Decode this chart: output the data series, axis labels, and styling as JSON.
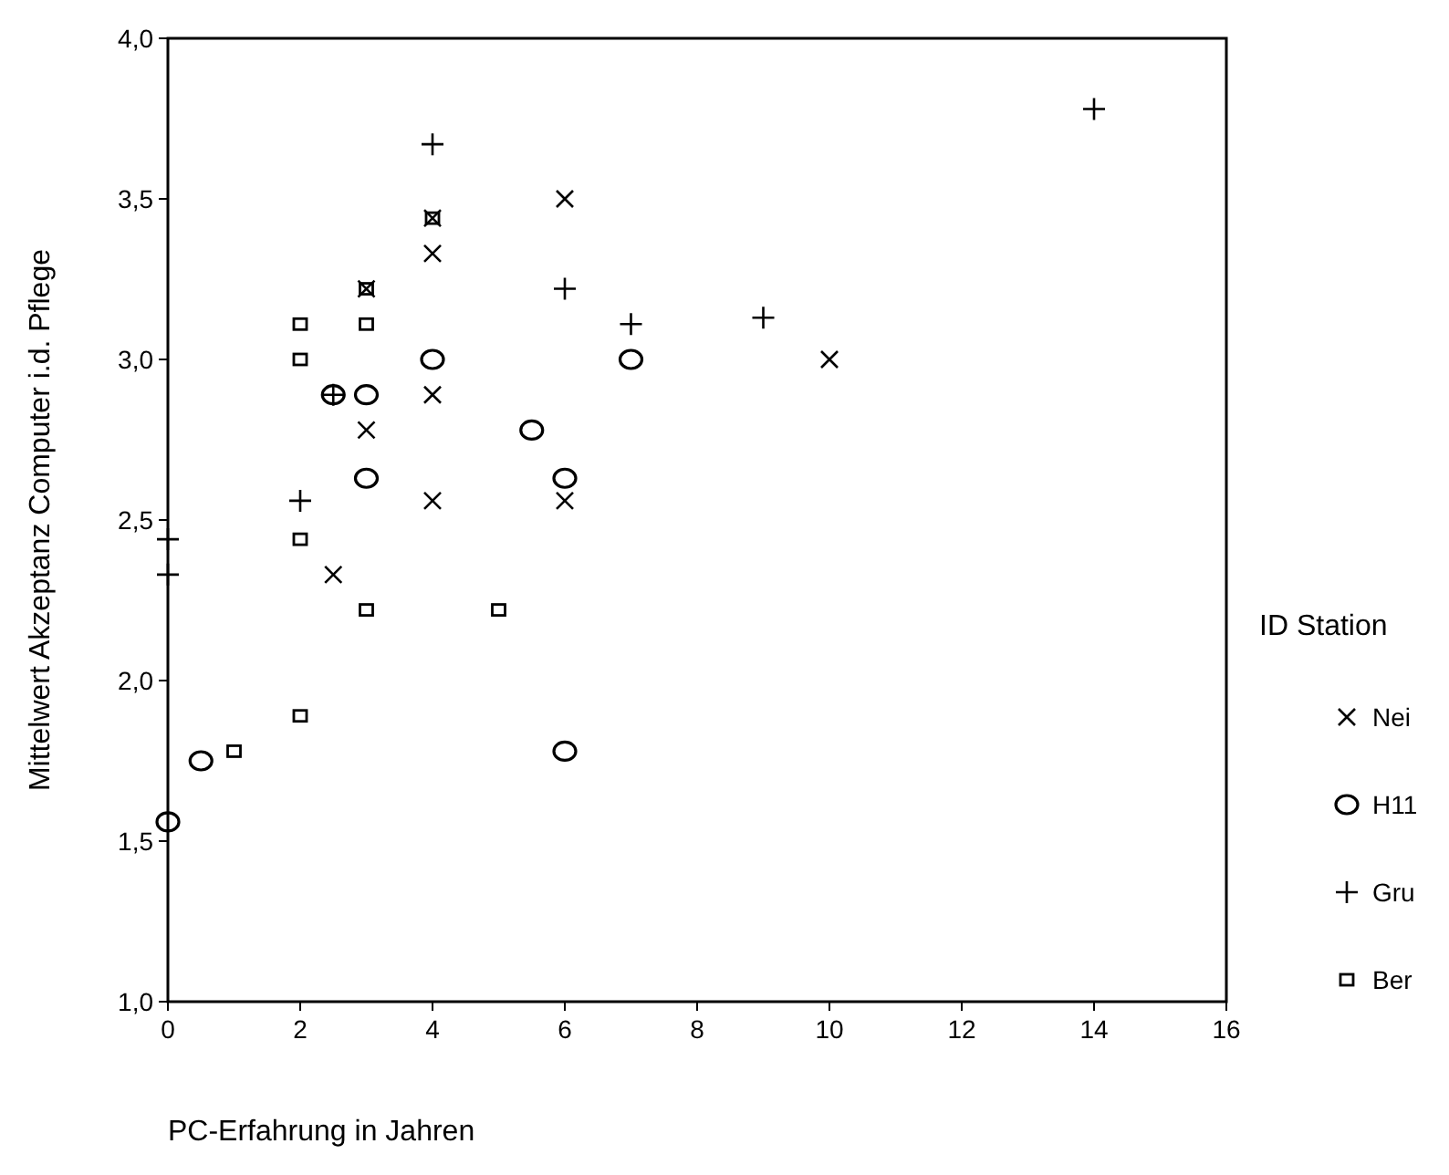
{
  "chart_data": {
    "type": "scatter",
    "xlabel": "PC-Erfahrung in Jahren",
    "ylabel": "Mittelwert Akzeptanz Computer i.d. Pflege",
    "legend_title": "ID Station",
    "legend": "right",
    "grid": false,
    "xlim": [
      0,
      16
    ],
    "xticks": [
      0,
      2,
      4,
      6,
      8,
      10,
      12,
      14,
      16
    ],
    "ylim": [
      1,
      4
    ],
    "yticks": [
      {
        "value": 1,
        "label": "1,0"
      },
      {
        "value": 1.5,
        "label": "1,5"
      },
      {
        "value": 2,
        "label": "2,0"
      },
      {
        "value": 2.5,
        "label": "2,5"
      },
      {
        "value": 3,
        "label": "3,0"
      },
      {
        "value": 3.5,
        "label": "3,5"
      },
      {
        "value": 4,
        "label": "4,0"
      }
    ],
    "series": [
      {
        "name": "Nei",
        "color": "#000000",
        "marker": "x",
        "x": [
          4,
          4,
          3,
          4,
          3,
          4,
          2.5,
          6,
          10,
          6
        ],
        "values": [
          3.44,
          3.33,
          3.22,
          2.89,
          2.78,
          2.56,
          2.33,
          3.5,
          3,
          2.56
        ]
      },
      {
        "name": "H11",
        "color": "#000000",
        "marker": "circle",
        "x": [
          4,
          2.5,
          3,
          5.5,
          3,
          0.5,
          0,
          7,
          6,
          6
        ],
        "values": [
          3,
          2.89,
          2.89,
          2.78,
          2.63,
          1.75,
          1.56,
          3,
          2.63,
          1.78
        ]
      },
      {
        "name": "Gru",
        "color": "#000000",
        "marker": "cross",
        "x": [
          4,
          2.5,
          2,
          0,
          0,
          14,
          6,
          7,
          9
        ],
        "values": [
          3.67,
          2.89,
          2.56,
          2.44,
          2.33,
          3.78,
          3.22,
          3.11,
          3.13
        ]
      },
      {
        "name": "Ber",
        "color": "#000000",
        "marker": "square",
        "x": [
          4,
          3,
          2,
          3,
          2,
          2,
          3,
          5,
          2,
          1
        ],
        "values": [
          3.44,
          3.22,
          3.11,
          3.11,
          3,
          2.44,
          2.22,
          2.22,
          1.89,
          1.78
        ]
      }
    ]
  }
}
